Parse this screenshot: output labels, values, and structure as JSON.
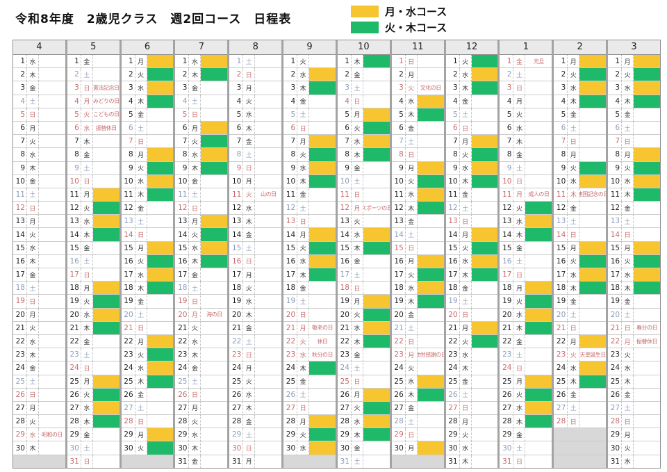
{
  "title": "令和8年度　2歳児クラス　週2回コース　日程表",
  "legend": [
    {
      "label": "月・水コース",
      "color": "#F7C52F"
    },
    {
      "label": "火・木コース",
      "color": "#1EB969"
    }
  ],
  "colors": {
    "course_mon_wed": "#F7C52F",
    "course_tue_thu": "#1EB969",
    "holiday_red": "#C96B6B",
    "saturday_blue": "#8B9DBB",
    "filler_gray": "#d8d8d8",
    "header_gray": "#eaeaea"
  },
  "weekday_names": [
    "日",
    "月",
    "火",
    "水",
    "木",
    "金",
    "土"
  ],
  "months": [
    {
      "label": "4",
      "days": 30,
      "first_weekday": 3,
      "yellow": [],
      "green": [],
      "holidays": {
        "29": "昭和の日"
      }
    },
    {
      "label": "5",
      "days": 31,
      "first_weekday": 5,
      "yellow": [
        11,
        13,
        18,
        20,
        25,
        27
      ],
      "green": [
        12,
        14,
        19,
        21,
        26,
        28
      ],
      "holidays": {
        "3": "憲法記念日",
        "4": "みどりの日",
        "5": "こどもの日",
        "6": "振替休日"
      }
    },
    {
      "label": "6",
      "days": 30,
      "first_weekday": 1,
      "yellow": [
        1,
        3,
        8,
        10,
        15,
        17,
        22,
        24,
        29
      ],
      "green": [
        2,
        4,
        9,
        11,
        16,
        18,
        23,
        25,
        30
      ],
      "holidays": {}
    },
    {
      "label": "7",
      "days": 31,
      "first_weekday": 3,
      "yellow": [
        1,
        6,
        8,
        13,
        15
      ],
      "green": [
        2,
        7,
        9,
        14,
        16
      ],
      "holidays": {
        "20": "海の日"
      }
    },
    {
      "label": "8",
      "days": 31,
      "first_weekday": 6,
      "yellow": [],
      "green": [],
      "holidays": {
        "11": "山の日"
      }
    },
    {
      "label": "9",
      "days": 30,
      "first_weekday": 2,
      "yellow": [
        2,
        7,
        9,
        14,
        16,
        28,
        30
      ],
      "green": [
        3,
        8,
        10,
        15,
        17,
        24,
        29
      ],
      "holidays": {
        "21": "敬老の日",
        "22": "休日",
        "23": "秋分の日"
      }
    },
    {
      "label": "10",
      "days": 31,
      "first_weekday": 4,
      "yellow": [
        5,
        7,
        14,
        19,
        21,
        26,
        28
      ],
      "green": [
        1,
        6,
        8,
        15,
        20,
        22,
        27,
        29
      ],
      "holidays": {
        "12": "スポーツの日"
      }
    },
    {
      "label": "11",
      "days": 30,
      "first_weekday": 0,
      "yellow": [
        4,
        9,
        11,
        16,
        18,
        25,
        30
      ],
      "green": [
        5,
        10,
        12,
        17,
        19,
        26
      ],
      "holidays": {
        "3": "文化の日",
        "23": "勤労感謝の日"
      }
    },
    {
      "label": "12",
      "days": 31,
      "first_weekday": 2,
      "yellow": [
        2,
        7,
        9,
        14,
        16,
        21
      ],
      "green": [
        1,
        3,
        8,
        10,
        15,
        17,
        22
      ],
      "holidays": {}
    },
    {
      "label": "1",
      "days": 31,
      "first_weekday": 5,
      "yellow": [
        13,
        18,
        20,
        25,
        27
      ],
      "green": [
        12,
        14,
        19,
        21,
        26,
        28
      ],
      "holidays": {
        "1": "元旦",
        "11": "成人の日"
      }
    },
    {
      "label": "2",
      "days": 28,
      "first_weekday": 1,
      "yellow": [
        1,
        3,
        10,
        15,
        17,
        22,
        24
      ],
      "green": [
        2,
        4,
        9,
        16,
        18,
        25
      ],
      "holidays": {
        "11": "建国記念の日",
        "23": "天皇誕生日"
      }
    },
    {
      "label": "3",
      "days": 31,
      "first_weekday": 1,
      "yellow": [
        1,
        3,
        8,
        10,
        15,
        17
      ],
      "green": [
        2,
        4,
        9,
        11,
        16,
        18
      ],
      "holidays": {
        "21": "春分の日",
        "22": "振替休日"
      }
    }
  ]
}
